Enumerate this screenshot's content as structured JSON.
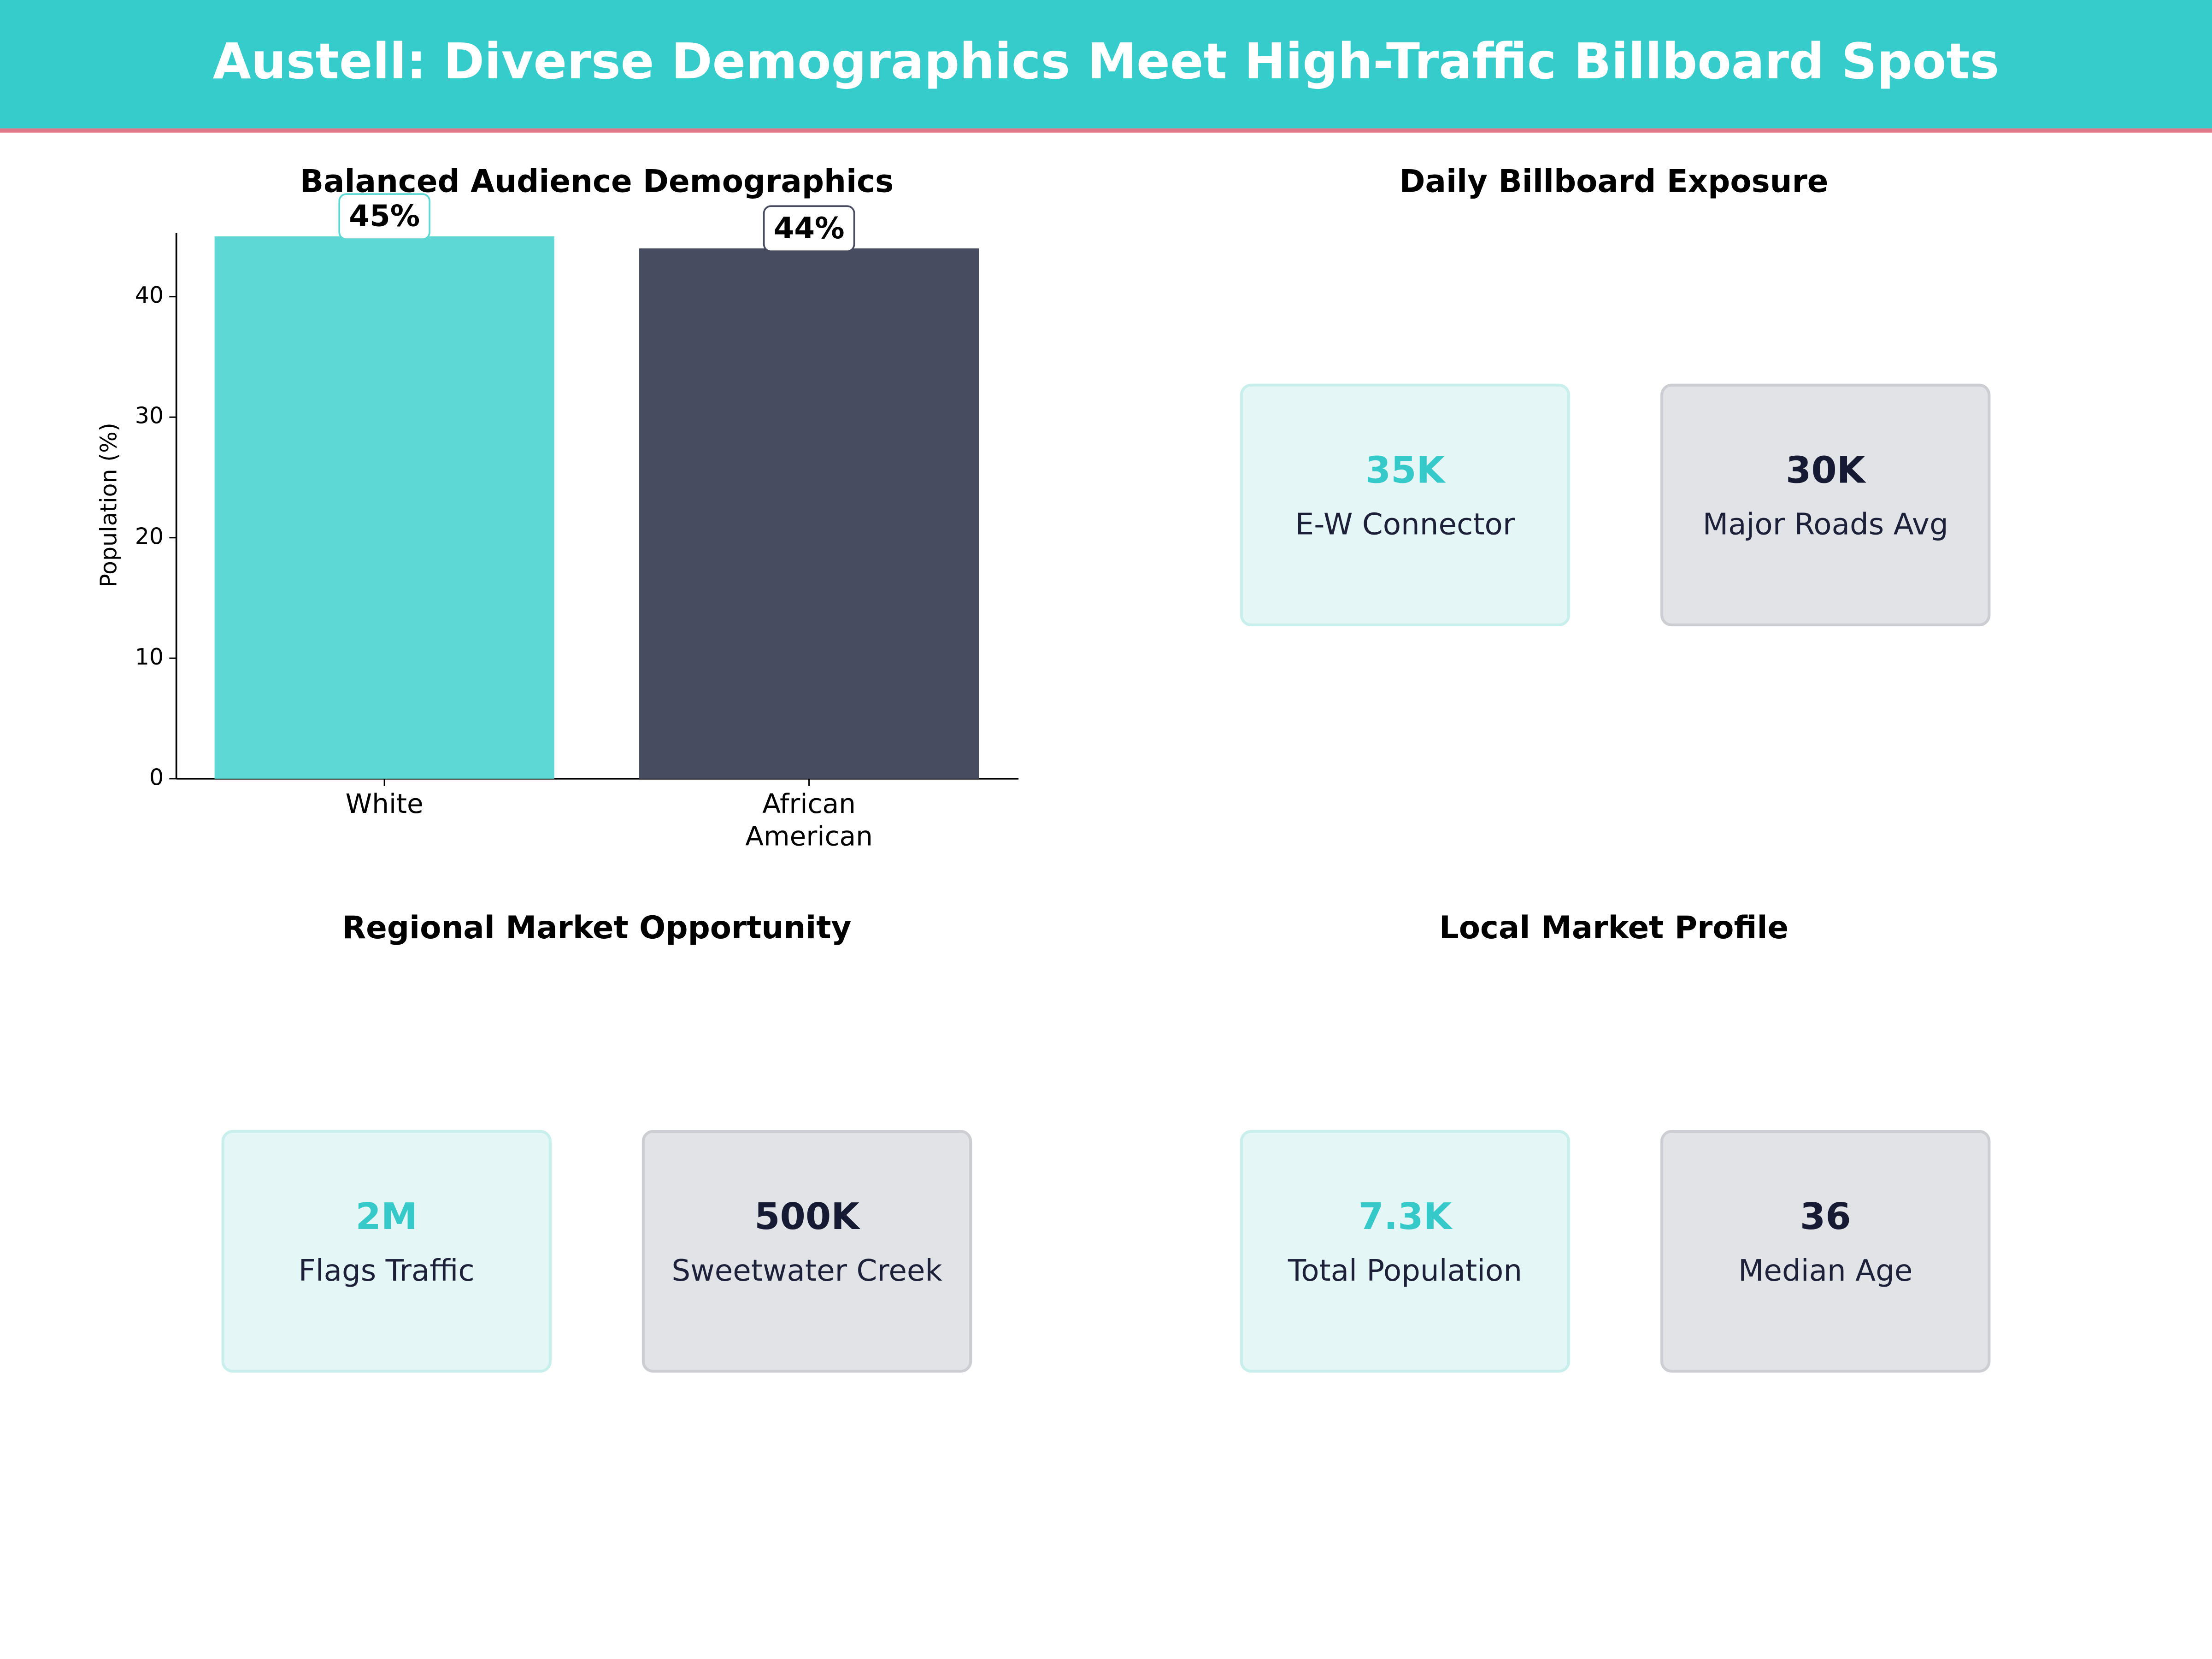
{
  "title": "Austell: Diverse Demographics Meet High-Traffic Billboard Spots",
  "chart_data": {
    "type": "bar",
    "title": "Balanced Audience Demographics",
    "categories": [
      "White",
      "African American"
    ],
    "values": [
      45,
      44
    ],
    "value_labels": [
      "45%",
      "44%"
    ],
    "colors": [
      "#5dd8d4",
      "#474c61"
    ],
    "ylabel": "Population (%)",
    "ylim": [
      0,
      45.3
    ],
    "yticks": [
      0,
      10,
      20,
      30,
      40
    ],
    "grid": false
  },
  "panels": [
    {
      "title": "Daily Billboard Exposure",
      "cards": [
        {
          "value": "35K",
          "label": "E-W Connector"
        },
        {
          "value": "30K",
          "label": "Major Roads Avg"
        }
      ]
    },
    {
      "title": "Regional Market Opportunity",
      "cards": [
        {
          "value": "2M",
          "label": "Flags Traffic"
        },
        {
          "value": "500K",
          "label": "Sweetwater Creek"
        }
      ]
    },
    {
      "title": "Local Market Profile",
      "cards": [
        {
          "value": "7.3K",
          "label": "Total Population"
        },
        {
          "value": "36",
          "label": "Median Age"
        }
      ]
    }
  ]
}
